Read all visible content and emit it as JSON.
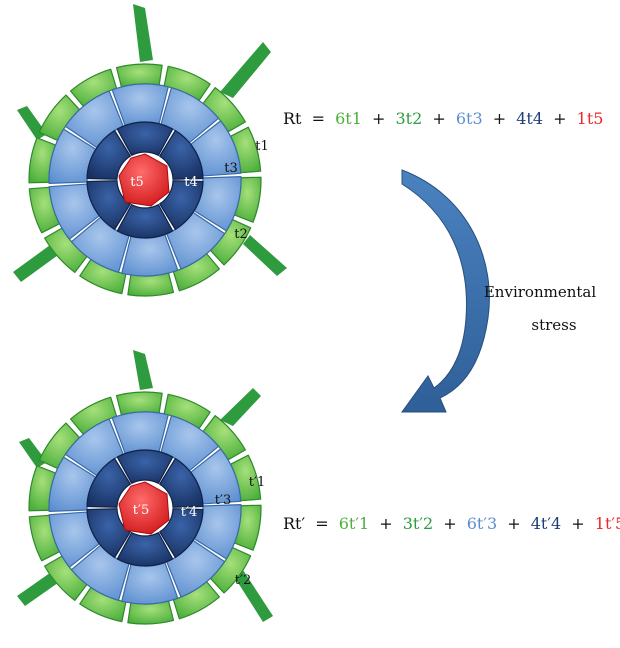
{
  "colors": {
    "t1": "#4caf3c",
    "t2": "#2e9b3e",
    "t3": "#5b8ed0",
    "t4": "#1d3e78",
    "t5": "#e8282a",
    "arrow": "#3d73b0"
  },
  "top": {
    "labels": {
      "t1": "t1",
      "t2": "t2",
      "t3": "t3",
      "t4": "t4",
      "t5": "t5"
    },
    "formula": {
      "lhs": "Rt",
      "eq": "=",
      "plus": "+",
      "terms": [
        {
          "text": "6t1",
          "tissue": "t1"
        },
        {
          "text": "3t2",
          "tissue": "t2"
        },
        {
          "text": "6t3",
          "tissue": "t3"
        },
        {
          "text": "4t4",
          "tissue": "t4"
        },
        {
          "text": "1t5",
          "tissue": "t5"
        }
      ]
    }
  },
  "bottom": {
    "labels": {
      "t1": "t′1",
      "t2": "t′2",
      "t3": "t′3",
      "t4": "t′4",
      "t5": "t′5"
    },
    "formula": {
      "lhs": "Rt′",
      "eq": "=",
      "plus": "+",
      "terms": [
        {
          "text": "6t′1",
          "tissue": "t1"
        },
        {
          "text": "3t′2",
          "tissue": "t2"
        },
        {
          "text": "6t′3",
          "tissue": "t3"
        },
        {
          "text": "4t′4",
          "tissue": "t4"
        },
        {
          "text": "1t′5",
          "tissue": "t5"
        }
      ]
    }
  },
  "arrow": {
    "label_line1": "Environmental",
    "label_line2": "stress"
  }
}
